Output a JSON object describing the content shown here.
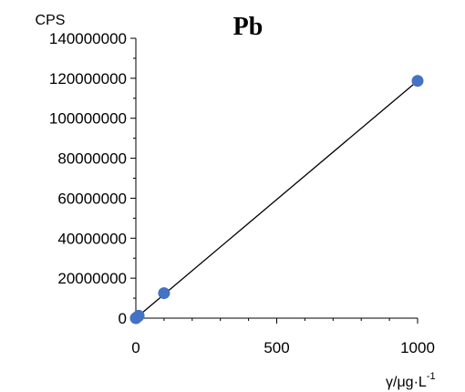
{
  "chart_data": {
    "type": "scatter",
    "title": "Pb",
    "ylabel": "CPS",
    "xlabel_parts": {
      "symbol": "γ",
      "separator": "/",
      "unit": "μg·L",
      "exponent": "-1"
    },
    "xlim": [
      0,
      1000
    ],
    "ylim": [
      0,
      140000000
    ],
    "x_ticks": [
      0,
      500,
      1000
    ],
    "x_tick_labels": [
      "0",
      "500",
      "1000"
    ],
    "y_ticks": [
      0,
      20000000,
      40000000,
      60000000,
      80000000,
      100000000,
      120000000,
      140000000
    ],
    "y_tick_labels": [
      "0",
      "20000000",
      "40000000",
      "60000000",
      "80000000",
      "100000000",
      "120000000",
      "140000000"
    ],
    "series": [
      {
        "points": [
          {
            "x": 0,
            "y": 0
          },
          {
            "x": 1,
            "y": 100000
          },
          {
            "x": 5,
            "y": 550000
          },
          {
            "x": 10,
            "y": 1200000
          },
          {
            "x": 100,
            "y": 12500000
          },
          {
            "x": 1000,
            "y": 118700000
          }
        ],
        "color": "#4472C4"
      }
    ],
    "trendline": {
      "x_start": 0,
      "y_start": 0,
      "x_end": 1000,
      "y_end": 118700000,
      "color": "#000000"
    },
    "grid": false,
    "legend": "none"
  }
}
